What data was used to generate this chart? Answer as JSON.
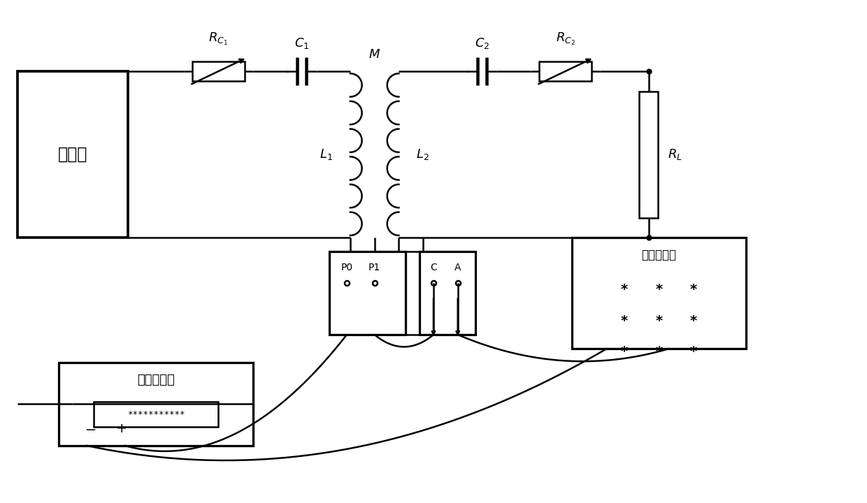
{
  "bg_color": "#ffffff",
  "lc": "#000000",
  "lw": 1.8,
  "fs": 13,
  "inverter_label": "逆变器",
  "dc_label": "直流电压源",
  "ac_label": "交流电压表",
  "fig_w": 12.4,
  "fig_h": 7.2
}
